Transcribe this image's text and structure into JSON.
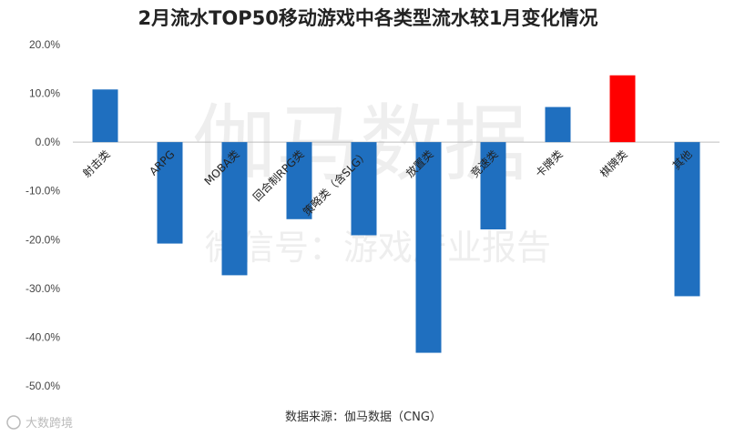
{
  "chart_data": {
    "type": "bar",
    "title": "2月流水TOP50移动游戏中各类型流水较1月变化情况",
    "categories": [
      "射击类",
      "ARPG",
      "MOBA类",
      "回合制RPG类",
      "策略类（含SLG）",
      "放置类",
      "竞速类",
      "卡牌类",
      "棋牌类",
      "其他"
    ],
    "values": [
      10.8,
      -20.8,
      -27.3,
      -15.8,
      -19.1,
      -43.2,
      -17.9,
      7.2,
      13.7,
      -31.6
    ],
    "ylim": [
      -50,
      20
    ],
    "yticks": [
      "20.0%",
      "10.0%",
      "0.0%",
      "-10.0%",
      "-20.0%",
      "-30.0%",
      "-40.0%",
      "-50.0%"
    ],
    "xlabel": "",
    "ylabel": "",
    "grid": false,
    "colors": {
      "default": "#1f6fbf",
      "highlight": "#ff0000",
      "highlight_category": "棋牌类"
    }
  },
  "source": "数据来源：伽马数据（CNG）",
  "watermark_main": "伽马数据",
  "watermark_sub": "微信号：游戏产业报告",
  "corner_mark": "大数跨境"
}
